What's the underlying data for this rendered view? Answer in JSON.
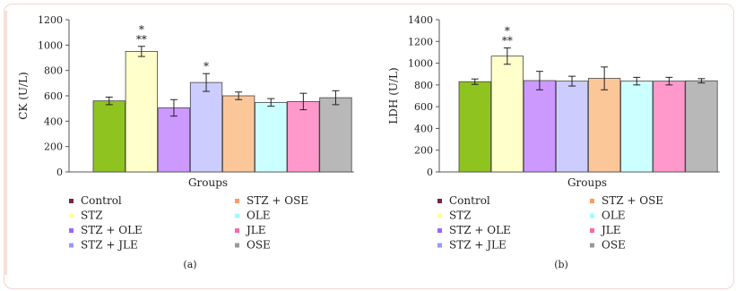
{
  "chart_data": [
    {
      "type": "bar",
      "panel_label": "(a)",
      "xlabel": "Groups",
      "ylabel": "CK (U/L)",
      "ylim": [
        0,
        1200
      ],
      "yticks": [
        0,
        200,
        400,
        600,
        800,
        1000,
        1200
      ],
      "grid": false,
      "legend_position": "bottom",
      "categories": [
        "Control",
        "STZ",
        "STZ + OLE",
        "STZ + JLE",
        "STZ + OSE",
        "OLE",
        "JLE",
        "OSE"
      ],
      "values": [
        560,
        950,
        505,
        705,
        600,
        548,
        555,
        585
      ],
      "errors": [
        30,
        40,
        65,
        70,
        30,
        30,
        65,
        55
      ],
      "annotations": [
        "",
        "*\n**",
        "",
        "*",
        "",
        "",
        "",
        ""
      ]
    },
    {
      "type": "bar",
      "panel_label": "(b)",
      "xlabel": "Groups",
      "ylabel": "LDH (U/L)",
      "ylim": [
        0,
        1400
      ],
      "yticks": [
        0,
        200,
        400,
        600,
        800,
        1000,
        1200,
        1400
      ],
      "grid": false,
      "legend_position": "bottom",
      "categories": [
        "Control",
        "STZ",
        "STZ + OLE",
        "STZ + JLE",
        "STZ + OSE",
        "OLE",
        "JLE",
        "OSE"
      ],
      "values": [
        830,
        1065,
        840,
        835,
        860,
        835,
        835,
        838
      ],
      "errors": [
        25,
        75,
        85,
        45,
        105,
        35,
        35,
        20
      ],
      "annotations": [
        "",
        "*\n**",
        "",
        "",
        "",
        "",
        "",
        ""
      ]
    }
  ],
  "colors": [
    "#8fc31f",
    "#ffffcc",
    "#cc99ff",
    "#ccccff",
    "#fbc799",
    "#ccffff",
    "#ff99cc",
    "#b8b8b8"
  ],
  "legend_marker_colors": [
    "#7b2048",
    "#ffff99",
    "#9966ff",
    "#9999ff",
    "#ff9966",
    "#99ffff",
    "#ff66aa",
    "#999999"
  ],
  "legend_columns": [
    [
      "Control",
      "STZ",
      "STZ + OLE",
      "STZ + JLE"
    ],
    [
      "STZ + OSE",
      "OLE",
      "JLE",
      "OSE"
    ]
  ]
}
